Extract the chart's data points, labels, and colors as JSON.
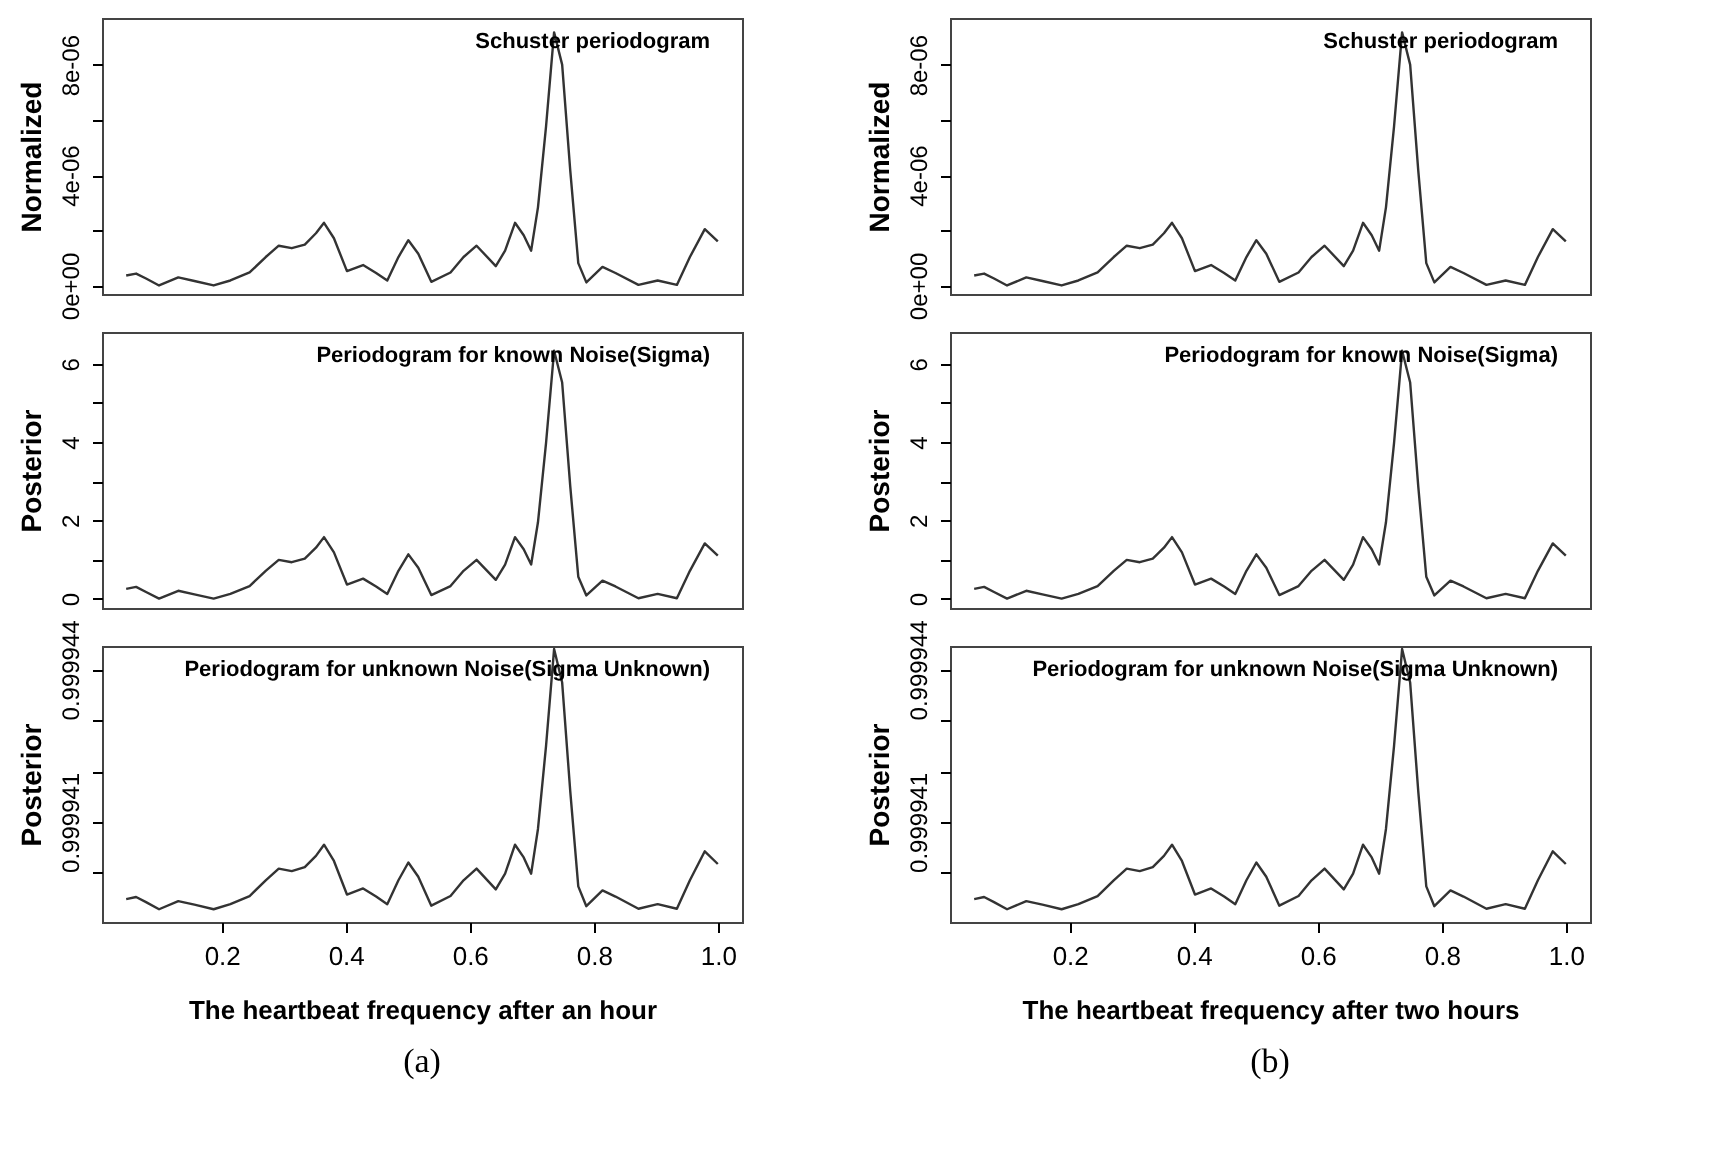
{
  "chart_data": [
    {
      "type": "line",
      "title": "Schuster periodogram",
      "ylabel": "Normalized",
      "tick_labels": "y",
      "grid": false,
      "xlim": [
        0.007,
        1.039
      ],
      "ylim": [
        -3.1e-07,
        9.69e-06
      ],
      "yticks": [
        {
          "value": 0,
          "label": "0e+00"
        },
        {
          "value": 2e-06,
          "label": null
        },
        {
          "value": 4e-06,
          "label": "4e-06"
        },
        {
          "value": 6e-06,
          "label": null
        },
        {
          "value": 8e-06,
          "label": "8e-06"
        }
      ],
      "x": [
        0.046,
        0.062,
        0.078,
        0.099,
        0.13,
        0.156,
        0.187,
        0.214,
        0.245,
        0.271,
        0.292,
        0.313,
        0.334,
        0.352,
        0.365,
        0.381,
        0.402,
        0.428,
        0.449,
        0.467,
        0.485,
        0.501,
        0.517,
        0.538,
        0.569,
        0.59,
        0.611,
        0.642,
        0.657,
        0.673,
        0.687,
        0.699,
        0.71,
        0.723,
        0.736,
        0.749,
        0.762,
        0.775,
        0.788,
        0.814,
        0.835,
        0.872,
        0.903,
        0.934,
        0.955,
        0.979,
        1.0
      ],
      "series": [
        {
          "color": "#333333",
          "values": [
            3.6e-07,
            4.3e-07,
            2.5e-07,
            0.0,
            2.9e-07,
            1.6e-07,
            0.0,
            1.8e-07,
            4.7e-07,
            1.03e-06,
            1.44e-06,
            1.35e-06,
            1.48e-06,
            1.89e-06,
            2.27e-06,
            1.71e-06,
            5.2e-07,
            7.4e-07,
            4.5e-07,
            1.8e-07,
            1.03e-06,
            1.64e-06,
            1.15e-06,
            1.3e-07,
            4.7e-07,
            1.03e-06,
            1.44e-06,
            7e-07,
            1.26e-06,
            2.27e-06,
            1.82e-06,
            1.26e-06,
            2.83e-06,
            5.75e-06,
            9.17e-06,
            8e-06,
            4.18e-06,
            8.1e-07,
            1.1e-07,
            6.7e-07,
            4.5e-07,
            2e-08,
            1.8e-07,
            2e-08,
            1.03e-06,
            2.04e-06,
            1.6e-06
          ]
        }
      ]
    },
    {
      "type": "line",
      "title": "Periodogram for known Noise(Sigma)",
      "ylabel": "Posterior",
      "tick_labels": "y",
      "grid": false,
      "xlim": [
        0.007,
        1.039
      ],
      "ylim": [
        -0.24,
        6.81
      ],
      "yticks": [
        0,
        {
          "value": 1,
          "label": null
        },
        2,
        {
          "value": 3,
          "label": null
        },
        4,
        {
          "value": 5,
          "label": null
        },
        6
      ],
      "x": [
        0.046,
        0.062,
        0.078,
        0.099,
        0.13,
        0.156,
        0.187,
        0.214,
        0.245,
        0.271,
        0.292,
        0.313,
        0.334,
        0.352,
        0.365,
        0.381,
        0.402,
        0.428,
        0.449,
        0.467,
        0.485,
        0.501,
        0.517,
        0.538,
        0.569,
        0.59,
        0.611,
        0.642,
        0.657,
        0.673,
        0.687,
        0.699,
        0.71,
        0.723,
        0.736,
        0.749,
        0.762,
        0.775,
        0.788,
        0.814,
        0.835,
        0.872,
        0.903,
        0.934,
        0.955,
        0.979,
        1.0
      ],
      "series": [
        {
          "color": "#333333",
          "values": [
            0.25,
            0.3,
            0.17,
            0,
            0.2,
            0.11,
            0,
            0.12,
            0.32,
            0.71,
            0.99,
            0.93,
            1.02,
            1.3,
            1.57,
            1.18,
            0.36,
            0.51,
            0.31,
            0.12,
            0.71,
            1.13,
            0.79,
            0.09,
            0.32,
            0.71,
            0.99,
            0.48,
            0.87,
            1.57,
            1.26,
            0.87,
            1.95,
            3.97,
            6.33,
            5.52,
            2.88,
            0.56,
            0.08,
            0.46,
            0.31,
            0.01,
            0.12,
            0.01,
            0.71,
            1.41,
            1.1
          ]
        }
      ]
    },
    {
      "type": "line",
      "title": "Periodogram for unknown Noise(Sigma Unknown)",
      "ylabel": "Posterior",
      "xlabel": "The heartbeat frequency after an hour",
      "annotations": [
        "(a)"
      ],
      "grid": false,
      "xlim": [
        0.007,
        1.039
      ],
      "ylim": [
        0.999939029,
        0.99994446
      ],
      "xticks": [
        0.2,
        0.4,
        0.6,
        0.8,
        {
          "value": 1.0,
          "label": "1.0"
        }
      ],
      "yticks": [
        {
          "value": 0.99994,
          "label": null
        },
        0.999941,
        {
          "value": 0.999942,
          "label": null
        },
        {
          "value": 0.999943,
          "label": null
        },
        0.999944
      ],
      "x": [
        0.046,
        0.062,
        0.078,
        0.099,
        0.13,
        0.156,
        0.187,
        0.214,
        0.245,
        0.271,
        0.292,
        0.313,
        0.334,
        0.352,
        0.365,
        0.381,
        0.402,
        0.428,
        0.449,
        0.467,
        0.485,
        0.501,
        0.517,
        0.538,
        0.569,
        0.59,
        0.611,
        0.642,
        0.657,
        0.673,
        0.687,
        0.699,
        0.71,
        0.723,
        0.736,
        0.749,
        0.762,
        0.775,
        0.788,
        0.814,
        0.835,
        0.872,
        0.903,
        0.934,
        0.955,
        0.979,
        1.0
      ],
      "series": [
        {
          "color": "#333333",
          "values": [
            0.99993948,
            0.99993952,
            0.99993942,
            0.99993928,
            0.99993944,
            0.99993937,
            0.99993928,
            0.99993938,
            0.99993954,
            0.99993985,
            0.99994008,
            0.99994003,
            0.99994011,
            0.99994033,
            0.99994055,
            0.99994023,
            0.99993957,
            0.99993969,
            0.99993953,
            0.99993938,
            0.99993985,
            0.9999402,
            0.99993992,
            0.99993935,
            0.99993954,
            0.99993985,
            0.99994008,
            0.99993967,
            0.99993998,
            0.99994055,
            0.9999403,
            0.99993998,
            0.99994086,
            0.99994249,
            0.9999444,
            0.99994374,
            0.99994161,
            0.99993973,
            0.99993934,
            0.99993965,
            0.99993953,
            0.99993929,
            0.99993938,
            0.99993929,
            0.99993985,
            0.99994042,
            0.99994017
          ]
        }
      ]
    },
    {
      "type": "line",
      "title": "Schuster periodogram",
      "ylabel": "Normalized",
      "tick_labels": "y",
      "grid": false,
      "xlim": [
        0.007,
        1.039
      ],
      "ylim": [
        -3.1e-07,
        9.69e-06
      ],
      "yticks": [
        {
          "value": 0,
          "label": "0e+00"
        },
        {
          "value": 2e-06,
          "label": null
        },
        {
          "value": 4e-06,
          "label": "4e-06"
        },
        {
          "value": 6e-06,
          "label": null
        },
        {
          "value": 8e-06,
          "label": "8e-06"
        }
      ],
      "x": [
        0.046,
        0.062,
        0.078,
        0.099,
        0.13,
        0.156,
        0.187,
        0.214,
        0.245,
        0.271,
        0.292,
        0.313,
        0.334,
        0.352,
        0.365,
        0.381,
        0.402,
        0.428,
        0.449,
        0.467,
        0.485,
        0.501,
        0.517,
        0.538,
        0.569,
        0.59,
        0.611,
        0.642,
        0.657,
        0.673,
        0.687,
        0.699,
        0.71,
        0.723,
        0.736,
        0.749,
        0.762,
        0.775,
        0.788,
        0.814,
        0.835,
        0.872,
        0.903,
        0.934,
        0.955,
        0.979,
        1.0
      ],
      "series": [
        {
          "color": "#333333",
          "values": [
            3.6e-07,
            4.3e-07,
            2.5e-07,
            0.0,
            2.9e-07,
            1.6e-07,
            0.0,
            1.8e-07,
            4.7e-07,
            1.03e-06,
            1.44e-06,
            1.35e-06,
            1.48e-06,
            1.89e-06,
            2.27e-06,
            1.71e-06,
            5.2e-07,
            7.4e-07,
            4.5e-07,
            1.8e-07,
            1.03e-06,
            1.64e-06,
            1.15e-06,
            1.3e-07,
            4.7e-07,
            1.03e-06,
            1.44e-06,
            7e-07,
            1.26e-06,
            2.27e-06,
            1.82e-06,
            1.26e-06,
            2.83e-06,
            5.75e-06,
            9.17e-06,
            8e-06,
            4.18e-06,
            8.1e-07,
            1.1e-07,
            6.7e-07,
            4.5e-07,
            2e-08,
            1.8e-07,
            2e-08,
            1.03e-06,
            2.04e-06,
            1.6e-06
          ]
        }
      ]
    },
    {
      "type": "line",
      "title": "Periodogram for known Noise(Sigma)",
      "ylabel": "Posterior",
      "tick_labels": "y",
      "grid": false,
      "xlim": [
        0.007,
        1.039
      ],
      "ylim": [
        -0.24,
        6.81
      ],
      "yticks": [
        0,
        {
          "value": 1,
          "label": null
        },
        2,
        {
          "value": 3,
          "label": null
        },
        4,
        {
          "value": 5,
          "label": null
        },
        6
      ],
      "x": [
        0.046,
        0.062,
        0.078,
        0.099,
        0.13,
        0.156,
        0.187,
        0.214,
        0.245,
        0.271,
        0.292,
        0.313,
        0.334,
        0.352,
        0.365,
        0.381,
        0.402,
        0.428,
        0.449,
        0.467,
        0.485,
        0.501,
        0.517,
        0.538,
        0.569,
        0.59,
        0.611,
        0.642,
        0.657,
        0.673,
        0.687,
        0.699,
        0.71,
        0.723,
        0.736,
        0.749,
        0.762,
        0.775,
        0.788,
        0.814,
        0.835,
        0.872,
        0.903,
        0.934,
        0.955,
        0.979,
        1.0
      ],
      "series": [
        {
          "color": "#333333",
          "values": [
            0.25,
            0.3,
            0.17,
            0,
            0.2,
            0.11,
            0,
            0.12,
            0.32,
            0.71,
            0.99,
            0.93,
            1.02,
            1.3,
            1.57,
            1.18,
            0.36,
            0.51,
            0.31,
            0.12,
            0.71,
            1.13,
            0.79,
            0.09,
            0.32,
            0.71,
            0.99,
            0.48,
            0.87,
            1.57,
            1.26,
            0.87,
            1.95,
            3.97,
            6.33,
            5.52,
            2.88,
            0.56,
            0.08,
            0.46,
            0.31,
            0.01,
            0.12,
            0.01,
            0.71,
            1.41,
            1.1
          ]
        }
      ]
    },
    {
      "type": "line",
      "title": "Periodogram for unknown Noise(Sigma Unknown)",
      "ylabel": "Posterior",
      "xlabel": "The heartbeat frequency after two hours",
      "annotations": [
        "(b)"
      ],
      "grid": false,
      "xlim": [
        0.007,
        1.039
      ],
      "ylim": [
        0.999939029,
        0.99994446
      ],
      "xticks": [
        0.2,
        0.4,
        0.6,
        0.8,
        {
          "value": 1.0,
          "label": "1.0"
        }
      ],
      "yticks": [
        {
          "value": 0.99994,
          "label": null
        },
        0.999941,
        {
          "value": 0.999942,
          "label": null
        },
        {
          "value": 0.999943,
          "label": null
        },
        0.999944
      ],
      "x": [
        0.046,
        0.062,
        0.078,
        0.099,
        0.13,
        0.156,
        0.187,
        0.214,
        0.245,
        0.271,
        0.292,
        0.313,
        0.334,
        0.352,
        0.365,
        0.381,
        0.402,
        0.428,
        0.449,
        0.467,
        0.485,
        0.501,
        0.517,
        0.538,
        0.569,
        0.59,
        0.611,
        0.642,
        0.657,
        0.673,
        0.687,
        0.699,
        0.71,
        0.723,
        0.736,
        0.749,
        0.762,
        0.775,
        0.788,
        0.814,
        0.835,
        0.872,
        0.903,
        0.934,
        0.955,
        0.979,
        1.0
      ],
      "series": [
        {
          "color": "#333333",
          "values": [
            0.99993948,
            0.99993952,
            0.99993942,
            0.99993928,
            0.99993944,
            0.99993937,
            0.99993928,
            0.99993938,
            0.99993954,
            0.99993985,
            0.99994008,
            0.99994003,
            0.99994011,
            0.99994033,
            0.99994055,
            0.99994023,
            0.99993957,
            0.99993969,
            0.99993953,
            0.99993938,
            0.99993985,
            0.9999402,
            0.99993992,
            0.99993935,
            0.99993954,
            0.99993985,
            0.99994008,
            0.99993967,
            0.99993998,
            0.99994055,
            0.9999403,
            0.99993998,
            0.99994086,
            0.99994249,
            0.9999444,
            0.99994374,
            0.99994161,
            0.99993973,
            0.99993934,
            0.99993965,
            0.99993953,
            0.99993929,
            0.99993938,
            0.99993929,
            0.99993985,
            0.99994042,
            0.99994017
          ]
        }
      ]
    }
  ]
}
